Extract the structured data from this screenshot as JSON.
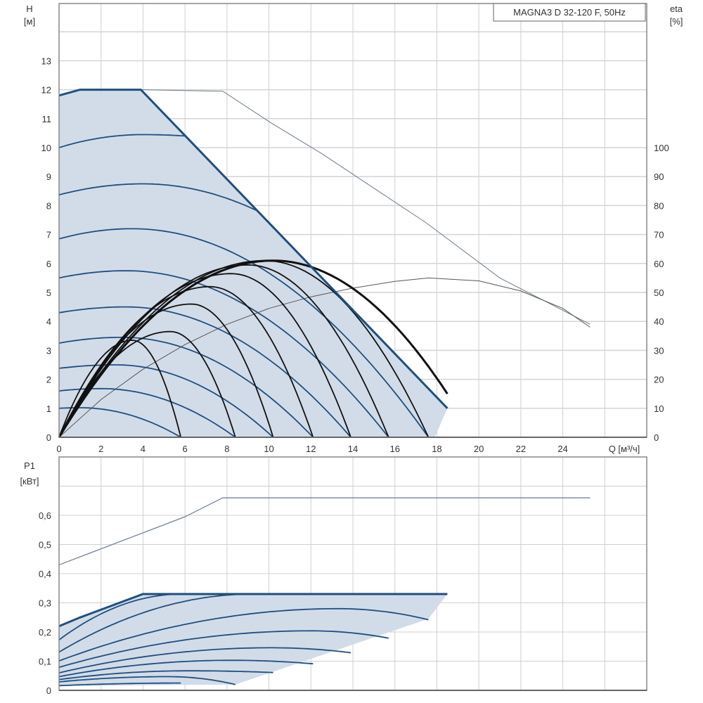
{
  "chart_data": [
    {
      "type": "line",
      "title": "MAGNA3 D 32-120 F, 50Hz",
      "xlabel": "Q [м³/ч]",
      "ylabel": "H",
      "ylabel_unit": "[м]",
      "y2label": "eta",
      "y2label_unit": "[%]",
      "xlim": [
        0,
        28
      ],
      "ylim": [
        0,
        15
      ],
      "y2lim": [
        0,
        150
      ],
      "grid": true,
      "x_ticks": [
        "0",
        "2",
        "4",
        "6",
        "8",
        "10",
        "12",
        "14",
        "16",
        "18",
        "20",
        "22",
        "24"
      ],
      "y_ticks": [
        "0",
        "1",
        "2",
        "3",
        "4",
        "5",
        "6",
        "7",
        "8",
        "9",
        "10",
        "11",
        "12",
        "13"
      ],
      "y2_ticks": [
        "0",
        "10",
        "20",
        "30",
        "40",
        "50",
        "60",
        "70",
        "80",
        "90",
        "100"
      ],
      "operating_area": [
        [
          0,
          0
        ],
        [
          0,
          11.8
        ],
        [
          1,
          12
        ],
        [
          3.9,
          12
        ],
        [
          18.5,
          1.0
        ],
        [
          17.9,
          0
        ]
      ],
      "max_curve": [
        [
          0,
          11.8
        ],
        [
          1,
          12
        ],
        [
          3.9,
          12
        ],
        [
          18.5,
          1.0
        ]
      ],
      "max_curve_extended": [
        [
          3.9,
          12
        ],
        [
          7.8,
          11.95
        ],
        [
          10,
          10.9
        ],
        [
          12.5,
          9.8
        ],
        [
          15,
          8.6
        ],
        [
          17.5,
          7.4
        ],
        [
          21,
          5.5
        ],
        [
          25.3,
          3.9
        ]
      ],
      "eta_max_curve": [
        [
          0,
          0
        ],
        [
          2,
          13
        ],
        [
          4,
          23.5
        ],
        [
          6,
          32
        ],
        [
          8,
          39
        ],
        [
          10,
          44.5
        ],
        [
          12,
          48.5
        ],
        [
          14,
          51.5
        ],
        [
          16,
          53.8
        ],
        [
          17.6,
          55
        ],
        [
          20,
          54
        ],
        [
          22,
          50.5
        ],
        [
          24,
          44.5
        ],
        [
          25.3,
          38
        ]
      ],
      "head_curves": [
        {
          "start": 1.0,
          "peak": [
            1,
            1.02
          ],
          "end": [
            5.8,
            0
          ]
        },
        {
          "start": 1.6,
          "peak": [
            2,
            1.68
          ],
          "end": [
            8.4,
            0
          ]
        },
        {
          "start": 2.38,
          "peak": [
            2.7,
            2.5
          ],
          "end": [
            10.2,
            0
          ]
        },
        {
          "start": 3.25,
          "peak": [
            3,
            3.45
          ],
          "end": [
            12.1,
            0
          ]
        },
        {
          "start": 4.3,
          "peak": [
            3.2,
            4.5
          ],
          "end": [
            13.9,
            0
          ]
        },
        {
          "start": 5.5,
          "peak": [
            3.2,
            5.75
          ],
          "end": [
            15.7,
            0
          ]
        },
        {
          "start": 6.85,
          "peak": [
            3.5,
            7.2
          ],
          "end": [
            17.6,
            0
          ]
        },
        {
          "start": 8.37,
          "peak": [
            4,
            8.75
          ],
          "end": [
            9.5,
            7.8
          ]
        },
        {
          "start": 10.0,
          "peak": [
            4,
            10.45
          ],
          "end": [
            6.05,
            10.4
          ]
        }
      ],
      "eta_curves": [
        {
          "start": 0,
          "peak": [
            3.5,
            33.5
          ],
          "end": [
            5.8,
            0
          ]
        },
        {
          "start": 0,
          "peak": [
            5.3,
            36.5
          ],
          "end": [
            8.4,
            0
          ]
        },
        {
          "start": 0,
          "peak": [
            6.3,
            46
          ],
          "end": [
            10.2,
            0
          ]
        },
        {
          "start": 0,
          "peak": [
            7.2,
            52
          ],
          "end": [
            12.1,
            0
          ]
        },
        {
          "start": 0,
          "peak": [
            8.2,
            56.5
          ],
          "end": [
            13.9,
            0
          ]
        },
        {
          "start": 0,
          "peak": [
            9.0,
            59.5
          ],
          "end": [
            15.7,
            0
          ]
        },
        {
          "start": 0,
          "peak": [
            9.8,
            61
          ],
          "end": [
            17.6,
            0
          ]
        },
        {
          "start": 0,
          "peak": [
            10.2,
            61
          ],
          "end": [
            18.5,
            15
          ]
        }
      ]
    },
    {
      "type": "line",
      "ylabel": "P1",
      "ylabel_unit": "[кВт]",
      "xlim": [
        0,
        28
      ],
      "ylim": [
        0,
        0.8
      ],
      "grid": true,
      "y_ticks": [
        "0",
        "0,1",
        "0,2",
        "0,3",
        "0,4",
        "0,5",
        "0,6"
      ],
      "operating_area": [
        [
          0,
          0.015
        ],
        [
          0,
          0.22
        ],
        [
          1,
          0.25
        ],
        [
          4,
          0.33
        ],
        [
          18.5,
          0.33
        ],
        [
          17.6,
          0.245
        ],
        [
          8.4,
          0.02
        ],
        [
          0,
          0.015
        ]
      ],
      "max_power_curve": [
        [
          0,
          0.43
        ],
        [
          2,
          0.485
        ],
        [
          4,
          0.54
        ],
        [
          6,
          0.595
        ],
        [
          7.8,
          0.66
        ],
        [
          25.3,
          0.66
        ]
      ],
      "top_line": [
        [
          0,
          0.22
        ],
        [
          1,
          0.25
        ],
        [
          4,
          0.33
        ],
        [
          18.5,
          0.33
        ]
      ],
      "power_curves": [
        {
          "start": 0.173,
          "peak": [
            5.85,
            0.33
          ],
          "end": [
            5.85,
            0.33
          ]
        },
        {
          "start": 0.131,
          "peak": [
            9.25,
            0.33
          ],
          "end": [
            9.25,
            0.33
          ]
        },
        {
          "start": 0.101,
          "peak": [
            13.3,
            0.28
          ],
          "end": [
            17.6,
            0.242
          ]
        },
        {
          "start": 0.079,
          "peak": [
            12,
            0.204
          ],
          "end": [
            15.7,
            0.179
          ]
        },
        {
          "start": 0.06,
          "peak": [
            10.1,
            0.146
          ],
          "end": [
            13.9,
            0.129
          ]
        },
        {
          "start": 0.047,
          "peak": [
            8.2,
            0.103
          ],
          "end": [
            12.1,
            0.091
          ]
        },
        {
          "start": 0.037,
          "peak": [
            6.2,
            0.067
          ],
          "end": [
            10.2,
            0.061
          ]
        },
        {
          "start": 0.029,
          "peak": [
            5.2,
            0.047
          ],
          "end": [
            8.4,
            0.02
          ]
        },
        {
          "start": 0.016,
          "peak": [
            5.8,
            0.025
          ],
          "end": [
            5.8,
            0.025
          ]
        }
      ]
    }
  ]
}
